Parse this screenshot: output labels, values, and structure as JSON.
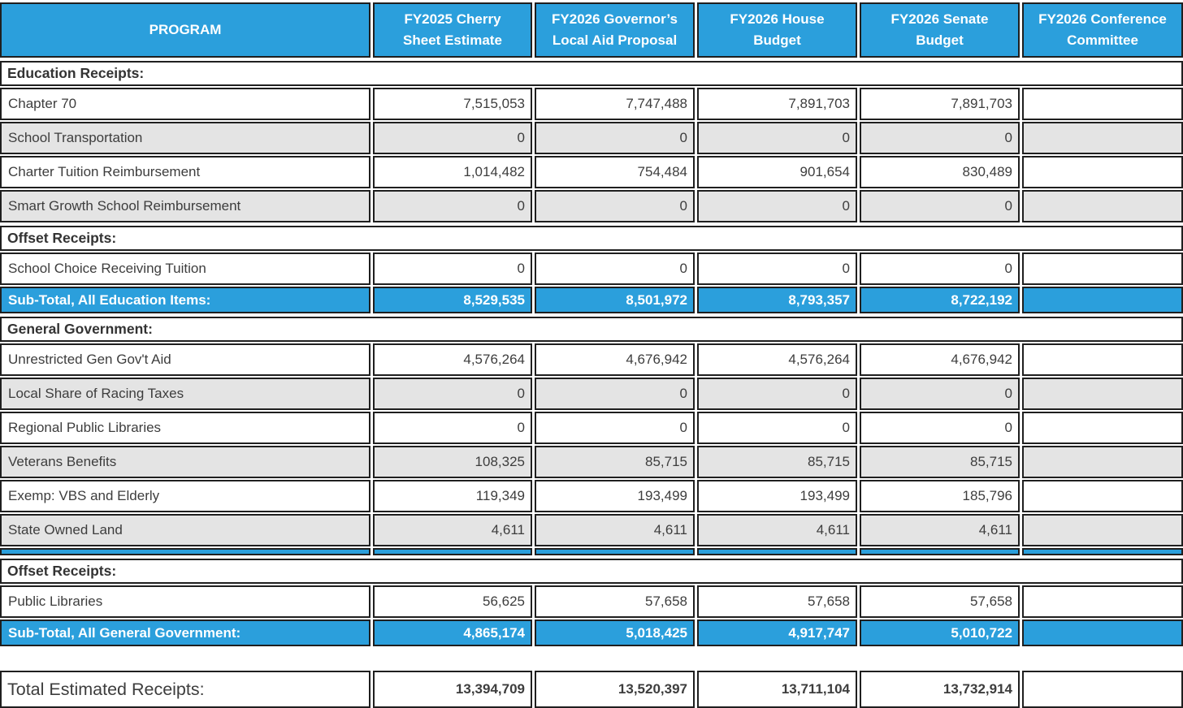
{
  "colors": {
    "header_blue": "#2B9FDC",
    "row_gray": "#E4E4E4",
    "border_dark": "#1F1F1F",
    "text_dark": "#3D3D3D"
  },
  "chart_data": {
    "type": "table",
    "columns": [
      "PROGRAM",
      "FY2025 Cherry Sheet Estimate",
      "FY2026 Governor’s Local Aid Proposal",
      "FY2026 House Budget",
      "FY2026 Senate Budget",
      "FY2026 Conference Committee"
    ],
    "rows": [
      {
        "kind": "section",
        "label": "Education Receipts:"
      },
      {
        "kind": "data",
        "shade": "white",
        "label": "Chapter 70",
        "values": [
          "7,515,053",
          "7,747,488",
          "7,891,703",
          "7,891,703",
          ""
        ]
      },
      {
        "kind": "data",
        "shade": "gray",
        "label": "School Transportation",
        "values": [
          "0",
          "0",
          "0",
          "0",
          ""
        ]
      },
      {
        "kind": "data",
        "shade": "white",
        "label": "Charter Tuition Reimbursement",
        "values": [
          "1,014,482",
          "754,484",
          "901,654",
          "830,489",
          ""
        ]
      },
      {
        "kind": "data",
        "shade": "gray",
        "label": "Smart Growth School Reimbursement",
        "values": [
          "0",
          "0",
          "0",
          "0",
          ""
        ]
      },
      {
        "kind": "section",
        "label": "Offset Receipts:"
      },
      {
        "kind": "data",
        "shade": "white",
        "label": "School Choice Receiving Tuition",
        "values": [
          "0",
          "0",
          "0",
          "0",
          ""
        ]
      },
      {
        "kind": "subtotal",
        "label": "Sub-Total, All Education Items:",
        "values": [
          "8,529,535",
          "8,501,972",
          "8,793,357",
          "8,722,192",
          ""
        ]
      },
      {
        "kind": "section",
        "label": "General Government:"
      },
      {
        "kind": "data",
        "shade": "white",
        "label": "Unrestricted Gen Gov't Aid",
        "values": [
          "4,576,264",
          "4,676,942",
          "4,576,264",
          "4,676,942",
          ""
        ]
      },
      {
        "kind": "data",
        "shade": "gray",
        "label": "Local Share of Racing Taxes",
        "values": [
          "0",
          "0",
          "0",
          "0",
          ""
        ]
      },
      {
        "kind": "data",
        "shade": "white",
        "label": "Regional Public Libraries",
        "values": [
          "0",
          "0",
          "0",
          "0",
          ""
        ]
      },
      {
        "kind": "data",
        "shade": "gray",
        "label": "Veterans Benefits",
        "values": [
          "108,325",
          "85,715",
          "85,715",
          "85,715",
          ""
        ]
      },
      {
        "kind": "data",
        "shade": "white",
        "label": "Exemp: VBS and Elderly",
        "values": [
          "119,349",
          "193,499",
          "193,499",
          "185,796",
          ""
        ]
      },
      {
        "kind": "data",
        "shade": "gray",
        "label": "State Owned Land",
        "values": [
          "4,611",
          "4,611",
          "4,611",
          "4,611",
          ""
        ]
      },
      {
        "kind": "partial"
      },
      {
        "kind": "section",
        "label": "Offset Receipts:"
      },
      {
        "kind": "data",
        "shade": "white",
        "label": "Public Libraries",
        "values": [
          "56,625",
          "57,658",
          "57,658",
          "57,658",
          ""
        ]
      },
      {
        "kind": "subtotal",
        "label": "Sub-Total, All General Government:",
        "values": [
          "4,865,174",
          "5,018,425",
          "4,917,747",
          "5,010,722",
          ""
        ]
      },
      {
        "kind": "spacer"
      },
      {
        "kind": "total",
        "label": "Total Estimated Receipts:",
        "values": [
          "13,394,709",
          "13,520,397",
          "13,711,104",
          "13,732,914",
          ""
        ]
      }
    ]
  }
}
